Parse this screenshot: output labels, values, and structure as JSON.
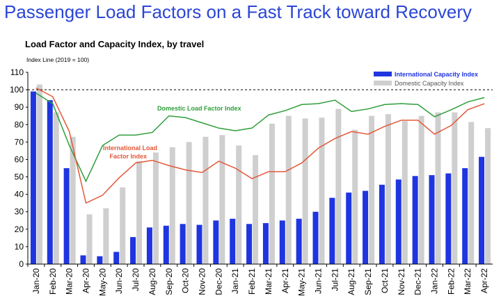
{
  "headline": "Passenger Load Factors on a Fast Track toward Recovery",
  "chart_data": {
    "type": "bar",
    "title": "Load Factor and Capacity Index, by travel",
    "index_note": "Index Line (2019 = 100)",
    "ylim": [
      0,
      110
    ],
    "yticks": [
      0,
      10,
      20,
      30,
      40,
      50,
      60,
      70,
      80,
      90,
      100,
      110
    ],
    "reference_line": 100,
    "categories": [
      "Jan-20",
      "Feb-20",
      "Mar-20",
      "Apr-20",
      "May-20",
      "Jun-20",
      "Jul-20",
      "Aug-20",
      "Sep-20",
      "Oct-20",
      "Nov-20",
      "Dec-20",
      "Jan-21",
      "Feb-21",
      "Mar-21",
      "Apr-21",
      "May-21",
      "Jun-21",
      "Jul-21",
      "Aug-21",
      "Sep-21",
      "Oct-21",
      "Nov-21",
      "Dec-21",
      "Jan-22",
      "Feb-22",
      "Mar-22",
      "Apr-22"
    ],
    "series": [
      {
        "name": "International Capacity Index",
        "kind": "bar",
        "color": "#1f35e0",
        "values": [
          99,
          94,
          55,
          5,
          4.5,
          7,
          15.5,
          21,
          22,
          23,
          22.5,
          25,
          26,
          23,
          23.5,
          25,
          26,
          30,
          38,
          41,
          42,
          45.5,
          48.5,
          50.5,
          51,
          52,
          55,
          61.5
        ]
      },
      {
        "name": "Domestic Capacity Index",
        "kind": "bar",
        "color": "#cfcfcf",
        "values": [
          103,
          87,
          73,
          28.5,
          32,
          44,
          59,
          64,
          67,
          70,
          73,
          74,
          68,
          62.5,
          80.5,
          85,
          83.5,
          84,
          89,
          77,
          85,
          86,
          82,
          85,
          87,
          87,
          81.5,
          78
        ]
      },
      {
        "name": "Domestic Load Factor Index",
        "kind": "line",
        "color": "#2e9e3a",
        "values": [
          98,
          92,
          68,
          47.5,
          68,
          74,
          74,
          75.5,
          85,
          84,
          81,
          78,
          76.5,
          78,
          85.5,
          88,
          91.5,
          92,
          94,
          87.5,
          89,
          91.5,
          92,
          91.5,
          84.5,
          88.5,
          93,
          95.5
        ]
      },
      {
        "name": "International Load Factor Index",
        "kind": "line",
        "color": "#e3583a",
        "values": [
          101,
          96,
          76,
          35,
          39.5,
          49.5,
          58,
          59.5,
          56.5,
          54,
          52.5,
          59,
          55,
          49,
          53,
          53,
          58,
          66.5,
          72,
          76,
          74.5,
          79,
          82.5,
          82.5,
          74.5,
          79.5,
          88.5,
          92
        ]
      }
    ],
    "annotations": [
      {
        "text": "Domestic Load Factor Index",
        "series": "Domestic Load Factor Index"
      },
      {
        "text_lines": [
          "International Load",
          "Factor Index"
        ],
        "series": "International Load Factor Index"
      }
    ],
    "legend_position": "top-right",
    "grid": false
  }
}
